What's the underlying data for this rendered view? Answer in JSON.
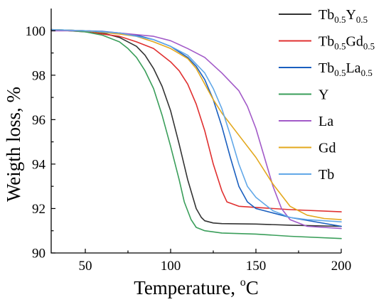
{
  "chart_data": {
    "type": "line",
    "xlabel": "Temperature, ",
    "xlabel_unit_sup": "o",
    "xlabel_unit": "C",
    "ylabel": "Weigth loss, %",
    "xlim": [
      30,
      200
    ],
    "ylim": [
      90,
      101
    ],
    "x_ticks": [
      50,
      100,
      150,
      200
    ],
    "y_ticks": [
      90,
      92,
      94,
      96,
      98,
      100
    ],
    "grid": false,
    "legend_position": "top-right",
    "series": [
      {
        "name": "Tb0.5Y0.5",
        "legend": [
          {
            "t": "Tb",
            "s": false
          },
          {
            "t": "0.5",
            "s": true
          },
          {
            "t": "Y",
            "s": false
          },
          {
            "t": "0.5",
            "s": true
          }
        ],
        "color": "#333333",
        "points": [
          [
            30,
            100.05
          ],
          [
            50,
            100.0
          ],
          [
            60,
            99.9
          ],
          [
            70,
            99.7
          ],
          [
            80,
            99.3
          ],
          [
            85,
            98.9
          ],
          [
            90,
            98.3
          ],
          [
            95,
            97.5
          ],
          [
            100,
            96.4
          ],
          [
            105,
            94.9
          ],
          [
            110,
            93.3
          ],
          [
            115,
            92.0
          ],
          [
            118,
            91.6
          ],
          [
            120,
            91.45
          ],
          [
            125,
            91.35
          ],
          [
            130,
            91.32
          ],
          [
            150,
            91.3
          ],
          [
            170,
            91.25
          ],
          [
            200,
            91.2
          ]
        ]
      },
      {
        "name": "Tb0.5Gd0.5",
        "legend": [
          {
            "t": "Tb",
            "s": false
          },
          {
            "t": "0.5",
            "s": true
          },
          {
            "t": "Gd",
            "s": false
          },
          {
            "t": "0.5",
            "s": true
          }
        ],
        "color": "#e03030",
        "points": [
          [
            30,
            100.05
          ],
          [
            50,
            99.95
          ],
          [
            70,
            99.75
          ],
          [
            80,
            99.5
          ],
          [
            90,
            99.2
          ],
          [
            100,
            98.6
          ],
          [
            105,
            98.2
          ],
          [
            110,
            97.6
          ],
          [
            115,
            96.7
          ],
          [
            120,
            95.5
          ],
          [
            125,
            94.0
          ],
          [
            130,
            92.8
          ],
          [
            133,
            92.3
          ],
          [
            140,
            92.1
          ],
          [
            150,
            92.05
          ],
          [
            170,
            91.95
          ],
          [
            200,
            91.85
          ]
        ]
      },
      {
        "name": "Tb0.5La0.5",
        "legend": [
          {
            "t": "Tb",
            "s": false
          },
          {
            "t": "0.5",
            "s": true
          },
          {
            "t": "La",
            "s": false
          },
          {
            "t": "0.5",
            "s": true
          }
        ],
        "color": "#1a5fbf",
        "points": [
          [
            30,
            100.05
          ],
          [
            50,
            100.0
          ],
          [
            60,
            99.97
          ],
          [
            70,
            99.9
          ],
          [
            80,
            99.8
          ],
          [
            90,
            99.6
          ],
          [
            100,
            99.3
          ],
          [
            110,
            98.8
          ],
          [
            115,
            98.4
          ],
          [
            120,
            97.8
          ],
          [
            125,
            96.9
          ],
          [
            130,
            95.7
          ],
          [
            135,
            94.3
          ],
          [
            140,
            93.0
          ],
          [
            145,
            92.3
          ],
          [
            150,
            92.0
          ],
          [
            160,
            91.8
          ],
          [
            170,
            91.6
          ],
          [
            200,
            91.2
          ]
        ]
      },
      {
        "name": "Y",
        "legend": [
          {
            "t": "Y",
            "s": false
          }
        ],
        "color": "#3a9e5a",
        "points": [
          [
            30,
            100.05
          ],
          [
            50,
            99.95
          ],
          [
            60,
            99.8
          ],
          [
            70,
            99.5
          ],
          [
            75,
            99.2
          ],
          [
            80,
            98.8
          ],
          [
            85,
            98.2
          ],
          [
            90,
            97.4
          ],
          [
            95,
            96.2
          ],
          [
            100,
            94.8
          ],
          [
            105,
            93.3
          ],
          [
            108,
            92.3
          ],
          [
            112,
            91.5
          ],
          [
            115,
            91.15
          ],
          [
            120,
            91.0
          ],
          [
            130,
            90.9
          ],
          [
            150,
            90.85
          ],
          [
            170,
            90.75
          ],
          [
            200,
            90.65
          ]
        ]
      },
      {
        "name": "La",
        "legend": [
          {
            "t": "La",
            "s": false
          }
        ],
        "color": "#a25ac8",
        "points": [
          [
            30,
            100.0
          ],
          [
            50,
            100.0
          ],
          [
            70,
            99.9
          ],
          [
            90,
            99.75
          ],
          [
            100,
            99.55
          ],
          [
            110,
            99.2
          ],
          [
            120,
            98.8
          ],
          [
            130,
            98.1
          ],
          [
            140,
            97.3
          ],
          [
            145,
            96.6
          ],
          [
            150,
            95.6
          ],
          [
            155,
            94.3
          ],
          [
            160,
            93.0
          ],
          [
            165,
            92.0
          ],
          [
            170,
            91.5
          ],
          [
            180,
            91.2
          ],
          [
            200,
            91.1
          ]
        ]
      },
      {
        "name": "Gd",
        "legend": [
          {
            "t": "Gd",
            "s": false
          }
        ],
        "color": "#e3a81e",
        "points": [
          [
            30,
            100.05
          ],
          [
            50,
            100.0
          ],
          [
            70,
            99.85
          ],
          [
            80,
            99.75
          ],
          [
            90,
            99.5
          ],
          [
            100,
            99.2
          ],
          [
            110,
            98.75
          ],
          [
            115,
            98.3
          ],
          [
            120,
            97.6
          ],
          [
            125,
            96.9
          ],
          [
            130,
            96.3
          ],
          [
            140,
            95.3
          ],
          [
            150,
            94.3
          ],
          [
            160,
            93.1
          ],
          [
            170,
            92.1
          ],
          [
            180,
            91.7
          ],
          [
            190,
            91.55
          ],
          [
            200,
            91.5
          ]
        ]
      },
      {
        "name": "Tb",
        "legend": [
          {
            "t": "Tb",
            "s": false
          }
        ],
        "color": "#62a8e8",
        "points": [
          [
            30,
            100.05
          ],
          [
            50,
            100.0
          ],
          [
            70,
            99.9
          ],
          [
            90,
            99.6
          ],
          [
            100,
            99.3
          ],
          [
            110,
            98.9
          ],
          [
            115,
            98.5
          ],
          [
            120,
            98.1
          ],
          [
            125,
            97.4
          ],
          [
            130,
            96.5
          ],
          [
            135,
            95.3
          ],
          [
            140,
            94.0
          ],
          [
            145,
            93.0
          ],
          [
            150,
            92.5
          ],
          [
            155,
            92.2
          ],
          [
            160,
            91.9
          ],
          [
            170,
            91.6
          ],
          [
            180,
            91.5
          ],
          [
            200,
            91.4
          ]
        ]
      }
    ]
  }
}
